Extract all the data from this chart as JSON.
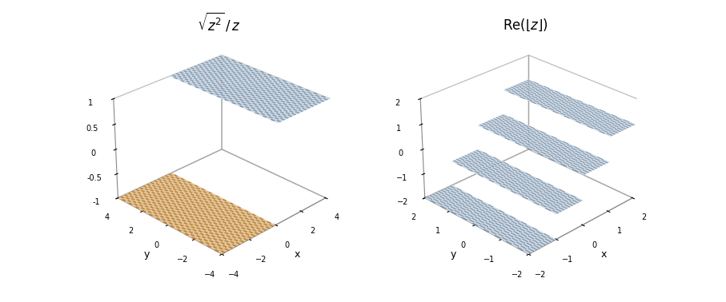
{
  "plot1": {
    "title": "$\\sqrt{z^2}\\,/\\,z$",
    "xrange": [
      -4,
      4
    ],
    "yrange": [
      -4,
      4
    ],
    "zrange": [
      -1,
      1
    ],
    "xlabel": "x",
    "ylabel": "y",
    "color_pos_light": "#c8d8e8",
    "color_pos_dark": "#8899aa",
    "color_neg_light": "#e8c090",
    "color_neg_dark": "#b88840",
    "elev": 28,
    "azim": -135
  },
  "plot2": {
    "title": "$\\mathrm{Re}(\\lfloor z \\rfloor)$",
    "xrange": [
      -2,
      2
    ],
    "yrange": [
      -2,
      2
    ],
    "zrange": [
      -2,
      2
    ],
    "xlabel": "x",
    "ylabel": "y",
    "color_light": "#c8d8e8",
    "color_dark": "#8899aa",
    "elev": 28,
    "azim": -135
  },
  "background_color": "#ffffff",
  "figsize": [
    9.07,
    3.78
  ],
  "dpi": 100
}
